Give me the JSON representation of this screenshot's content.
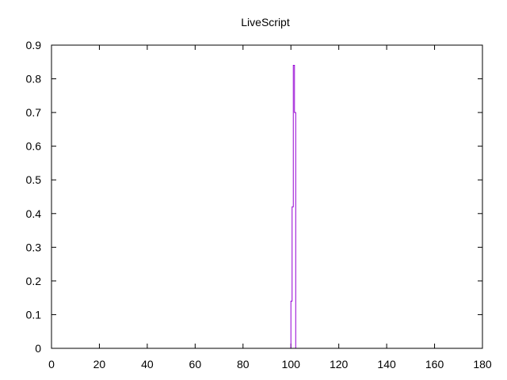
{
  "chart_data": {
    "type": "line",
    "title": "LiveScript",
    "xlabel": "",
    "ylabel": "",
    "xlim": [
      0,
      180
    ],
    "ylim": [
      0,
      0.9
    ],
    "x_ticks": [
      "0",
      "20",
      "40",
      "60",
      "80",
      "100",
      "120",
      "140",
      "160",
      "180"
    ],
    "y_ticks": [
      "0",
      "0.1",
      "0.2",
      "0.3",
      "0.4",
      "0.5",
      "0.6",
      "0.7",
      "0.8",
      "0.9"
    ],
    "grid": false,
    "legend": "none",
    "series": [
      {
        "color": "#9400d3",
        "x": [
          100,
          100,
          100.5,
          100.5,
          101,
          101,
          101.5,
          101.5,
          102,
          102
        ],
        "y": [
          0,
          0.14,
          0.14,
          0.42,
          0.42,
          0.84,
          0.84,
          0.7,
          0.7,
          0
        ]
      }
    ]
  }
}
